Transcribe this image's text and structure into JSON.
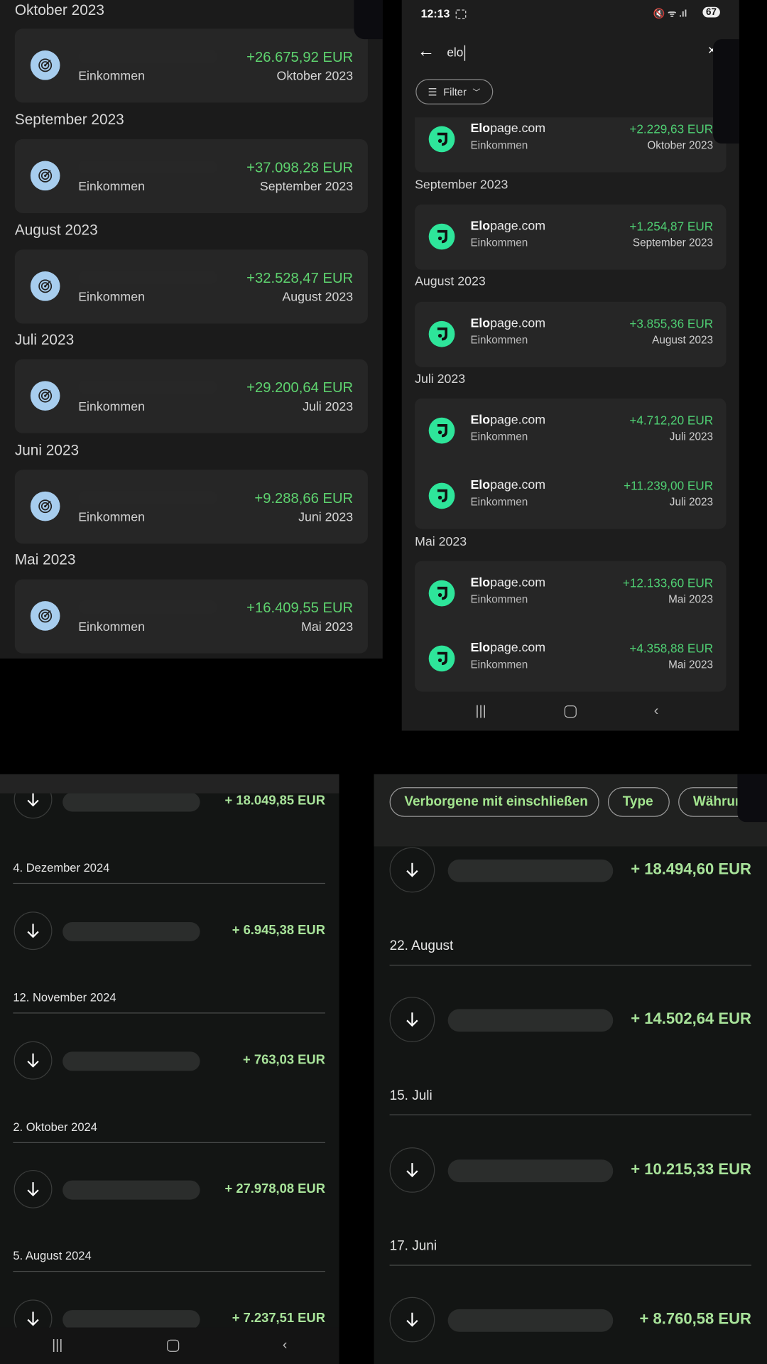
{
  "panel_a": {
    "sections": [
      {
        "header": "Oktober 2023",
        "category": "Einkommen",
        "amount": "+26.675,92 EUR",
        "date": "Oktober 2023",
        "icon": "target-icon"
      },
      {
        "header": "September 2023",
        "category": "Einkommen",
        "amount": "+37.098,28 EUR",
        "date": "September 2023",
        "icon": "target-icon"
      },
      {
        "header": "August 2023",
        "category": "Einkommen",
        "amount": "+32.528,47 EUR",
        "date": "August 2023",
        "icon": "target-icon"
      },
      {
        "header": "Juli 2023",
        "category": "Einkommen",
        "amount": "+29.200,64 EUR",
        "date": "Juli 2023",
        "icon": "target-icon"
      },
      {
        "header": "Juni 2023",
        "category": "Einkommen",
        "amount": "+9.288,66 EUR",
        "date": "Juni 2023",
        "icon": "target-icon"
      },
      {
        "header": "Mai 2023",
        "category": "Einkommen",
        "amount": "+16.409,55 EUR",
        "date": "Mai 2023",
        "icon": "target-icon"
      }
    ]
  },
  "panel_b": {
    "status_bar": {
      "time": "12:13",
      "battery": "67"
    },
    "search": {
      "value": "elo"
    },
    "filter_label": "Filter",
    "merchant_bold": "Elo",
    "merchant_rest": "page.com",
    "groups": [
      {
        "header": "",
        "items": [
          {
            "category": "Einkommen",
            "amount": "+2.229,63 EUR",
            "date": "Oktober 2023"
          }
        ]
      },
      {
        "header": "September 2023",
        "items": [
          {
            "category": "Einkommen",
            "amount": "+1.254,87 EUR",
            "date": "September 2023"
          }
        ]
      },
      {
        "header": "August 2023",
        "items": [
          {
            "category": "Einkommen",
            "amount": "+3.855,36 EUR",
            "date": "August 2023"
          }
        ]
      },
      {
        "header": "Juli 2023",
        "items": [
          {
            "category": "Einkommen",
            "amount": "+4.712,20 EUR",
            "date": "Juli 2023"
          },
          {
            "category": "Einkommen",
            "amount": "+11.239,00 EUR",
            "date": "Juli 2023"
          }
        ]
      },
      {
        "header": "Mai 2023",
        "items": [
          {
            "category": "Einkommen",
            "amount": "+12.133,60 EUR",
            "date": "Mai 2023"
          },
          {
            "category": "Einkommen",
            "amount": "+4.358,88 EUR",
            "date": "Mai 2023"
          }
        ]
      }
    ]
  },
  "panel_c": {
    "rows": [
      {
        "date": "",
        "amount": "+ 18.049,85 EUR"
      },
      {
        "date": "4. Dezember 2024",
        "amount": "+ 6.945,38 EUR"
      },
      {
        "date": "12. November 2024",
        "amount": "+ 763,03 EUR"
      },
      {
        "date": "2. Oktober 2024",
        "amount": "+ 27.978,08 EUR"
      },
      {
        "date": "5. August 2024",
        "amount": "+ 7.237,51 EUR"
      }
    ]
  },
  "panel_d": {
    "chips": [
      "Verborgene mit einschließen",
      "Type",
      "Währur"
    ],
    "rows": [
      {
        "date": "",
        "amount": "+ 18.494,60 EUR"
      },
      {
        "date": "22. August",
        "amount": "+ 14.502,64 EUR"
      },
      {
        "date": "15. Juli",
        "amount": "+ 10.215,33 EUR"
      },
      {
        "date": "17. Juni",
        "amount": "+ 8.760,58 EUR"
      }
    ]
  },
  "colors": {
    "income_green": "#5ed36f",
    "elopage_brand": "#2ee59a",
    "target_icon_bg": "#a7cdee",
    "income_green_light": "#a8e39a"
  }
}
